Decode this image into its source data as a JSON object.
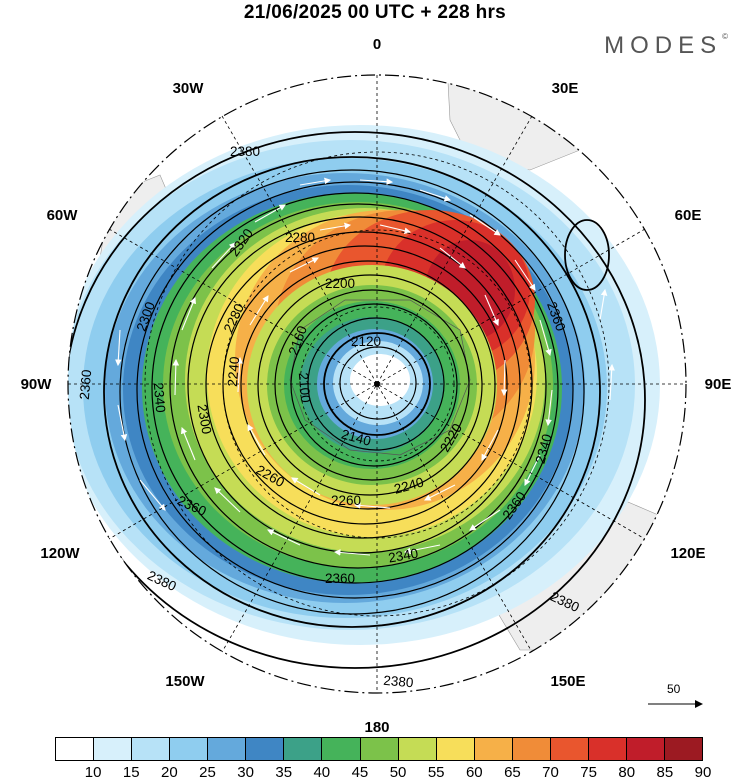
{
  "header": {
    "title": "21/06/2025  00 UTC  + 228 hrs",
    "brand": "MODES",
    "brand_mark": "©"
  },
  "map": {
    "projection": "south-polar-stereographic",
    "longitude_labels": {
      "top": "0",
      "top_right": "30E",
      "right_upper": "60E",
      "right": "90E",
      "right_lower": "120E",
      "bottom_right": "150E",
      "bottom": "180",
      "bottom_left": "150W",
      "left_lower": "120W",
      "left": "90W",
      "left_upper": "60W",
      "top_left": "30W"
    },
    "contour_labels": [
      "2380",
      "2320",
      "2280",
      "2200",
      "2300",
      "2280",
      "2160",
      "2120",
      "2360",
      "2340",
      "2240",
      "2100",
      "2140",
      "2300",
      "2260",
      "2260",
      "2240",
      "2220",
      "2340",
      "2360",
      "2360",
      "2340",
      "2360",
      "2380",
      "2380",
      "2380",
      "2380",
      "2360"
    ],
    "reference_vector": "50"
  },
  "colorbar": {
    "colors": [
      "#ffffff",
      "#d7f0fb",
      "#b7e2f7",
      "#8fcdef",
      "#64a9dc",
      "#3f86c4",
      "#3ca188",
      "#45b35a",
      "#7cc24a",
      "#c5dc55",
      "#f7de5a",
      "#f6b048",
      "#f08c38",
      "#e9562e",
      "#d9302a",
      "#c01d2a",
      "#9c1a22"
    ],
    "labels": [
      "10",
      "15",
      "20",
      "25",
      "30",
      "35",
      "40",
      "45",
      "50",
      "55",
      "60",
      "65",
      "70",
      "75",
      "80",
      "85",
      "90"
    ]
  }
}
